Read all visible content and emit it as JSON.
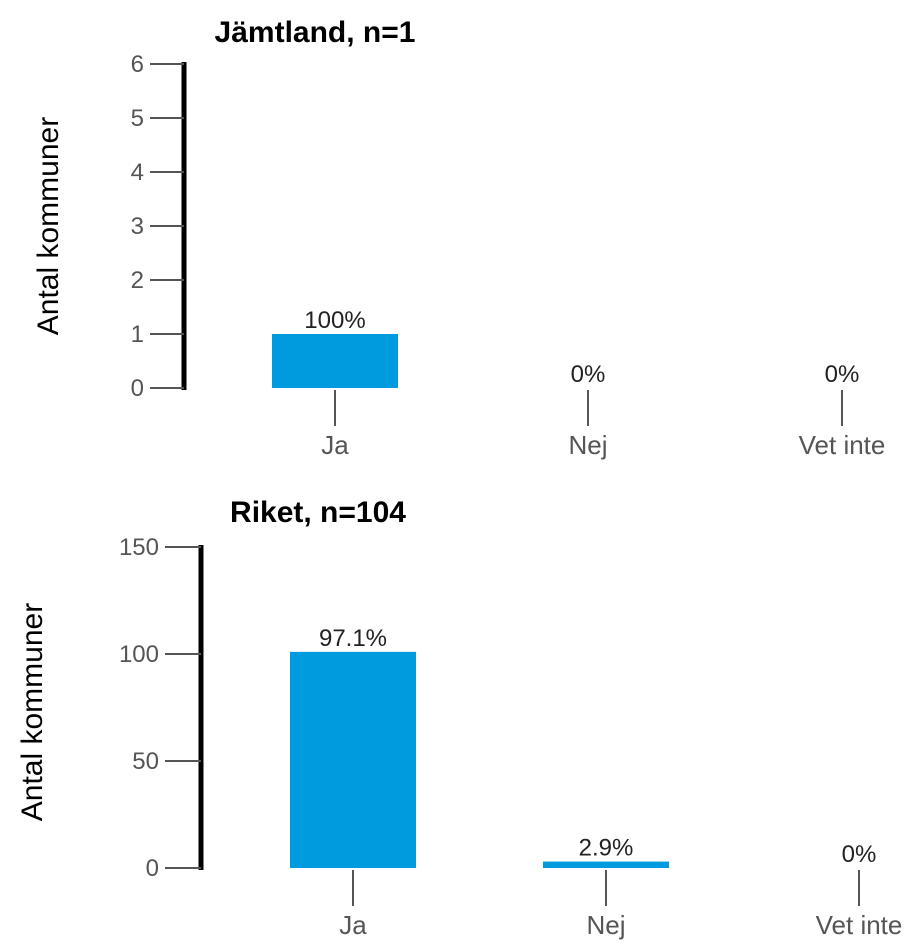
{
  "colors": {
    "bar": "#009ADE",
    "axis": "#000000",
    "tick": "#555555"
  },
  "chart_data": [
    {
      "type": "bar",
      "title": "Jämtland, n=1",
      "ylabel": "Antal kommuner",
      "xlabel": "",
      "categories": [
        "Ja",
        "Nej",
        "Vet inte"
      ],
      "values": [
        1,
        0,
        0
      ],
      "data_labels": [
        "100%",
        "0%",
        "0%"
      ],
      "yticks": [
        "0",
        "1",
        "2",
        "3",
        "4",
        "5",
        "6"
      ],
      "ylim": [
        0,
        6
      ],
      "grid": false
    },
    {
      "type": "bar",
      "title": "Riket, n=104",
      "ylabel": "Antal kommuner",
      "xlabel": "",
      "categories": [
        "Ja",
        "Nej",
        "Vet inte"
      ],
      "values": [
        101,
        3,
        0
      ],
      "data_labels": [
        "97.1%",
        "2.9%",
        "0%"
      ],
      "yticks": [
        "0",
        "50",
        "100",
        "150"
      ],
      "ylim": [
        0,
        150
      ],
      "grid": false
    }
  ]
}
